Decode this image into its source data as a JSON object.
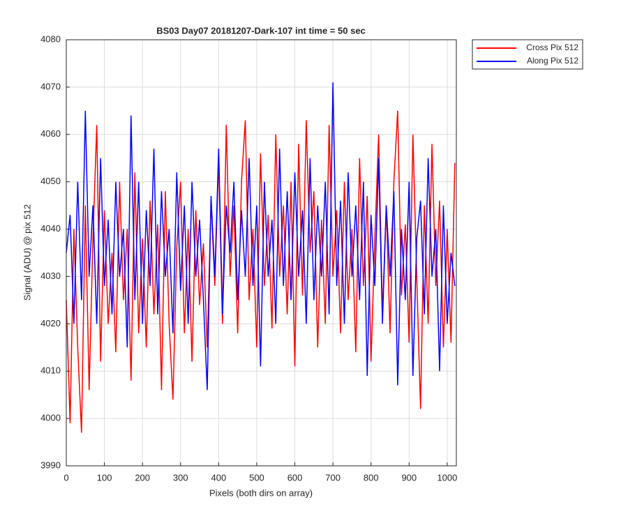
{
  "chart_data": {
    "type": "line",
    "title": "BS03 Day07 20181207-Dark-107 int time = 50 sec",
    "xlabel": "Pixels (both dirs on array)",
    "ylabel": "Signal (ADU) @ pix 512",
    "x": [
      0,
      10,
      20,
      30,
      40,
      50,
      60,
      70,
      80,
      90,
      100,
      110,
      120,
      130,
      140,
      150,
      160,
      170,
      180,
      190,
      200,
      210,
      220,
      230,
      240,
      250,
      260,
      270,
      280,
      290,
      300,
      310,
      320,
      330,
      340,
      350,
      360,
      370,
      380,
      390,
      400,
      410,
      420,
      430,
      440,
      450,
      460,
      470,
      480,
      490,
      500,
      510,
      520,
      530,
      540,
      550,
      560,
      570,
      580,
      590,
      600,
      610,
      620,
      630,
      640,
      650,
      660,
      670,
      680,
      690,
      700,
      710,
      720,
      730,
      740,
      750,
      760,
      770,
      780,
      790,
      800,
      810,
      820,
      830,
      840,
      850,
      860,
      870,
      880,
      890,
      900,
      910,
      920,
      930,
      940,
      950,
      960,
      970,
      980,
      990,
      1000,
      1010,
      1020
    ],
    "series": [
      {
        "name": "Cross Pix 512",
        "color": "#ff0000",
        "values": [
          4025,
          3999,
          4040,
          4015,
          3997,
          4045,
          4006,
          4038,
          4062,
          4012,
          4044,
          4020,
          4035,
          4014,
          4050,
          4025,
          4040,
          4008,
          4052,
          4018,
          4038,
          4015,
          4046,
          4022,
          4041,
          4006,
          4048,
          4020,
          4004,
          4036,
          4050,
          4018,
          4040,
          4012,
          4044,
          4024,
          4037,
          4015,
          4046,
          4028,
          4055,
          4020,
          4062,
          4030,
          4045,
          4018,
          4050,
          4063,
          4025,
          4040,
          4015,
          4056,
          4028,
          4043,
          4019,
          4060,
          4030,
          4045,
          4022,
          4050,
          4011,
          4058,
          4026,
          4063,
          4035,
          4048,
          4015,
          4042,
          4020,
          4062,
          4030,
          4044,
          4018,
          4050,
          4025,
          4040,
          4014,
          4055,
          4028,
          4047,
          4012,
          4038,
          4060,
          4022,
          4045,
          4018,
          4050,
          4065,
          4026,
          4041,
          4016,
          4060,
          4030,
          4002,
          4045,
          4020,
          4058,
          4028,
          4046,
          4015,
          4040,
          4016,
          4054
        ]
      },
      {
        "name": "Along Pix 512",
        "color": "#0000ff",
        "values": [
          4035,
          4043,
          4020,
          4050,
          4025,
          4065,
          4030,
          4045,
          4020,
          4055,
          4028,
          4042,
          4022,
          4050,
          4030,
          4040,
          4015,
          4064,
          4025,
          4050,
          4020,
          4044,
          4028,
          4057,
          4022,
          4048,
          4030,
          4040,
          4018,
          4052,
          4027,
          4045,
          4020,
          4050,
          4030,
          4042,
          4025,
          4006,
          4047,
          4030,
          4057,
          4022,
          4045,
          4035,
          4050,
          4025,
          4044,
          4030,
          4055,
          4028,
          4045,
          4011,
          4050,
          4030,
          4042,
          4020,
          4057,
          4028,
          4048,
          4025,
          4052,
          4030,
          4044,
          4020,
          4055,
          4025,
          4045,
          4030,
          4050,
          4022,
          4071,
          4028,
          4046,
          4020,
          4052,
          4030,
          4045,
          4025,
          4050,
          4009,
          4043,
          4028,
          4055,
          4020,
          4045,
          4030,
          4048,
          4007,
          4040,
          4025,
          4050,
          4009,
          4038,
          4046,
          4022,
          4055,
          4030,
          4040,
          4010,
          4045,
          4020,
          4035,
          4028
        ]
      }
    ],
    "xlim": [
      0,
      1024
    ],
    "xticks": [
      0,
      100,
      200,
      300,
      400,
      500,
      600,
      700,
      800,
      900,
      1000
    ],
    "ylim": [
      3990,
      4080
    ],
    "yticks": [
      3990,
      4000,
      4010,
      4020,
      4030,
      4040,
      4050,
      4060,
      4070,
      4080
    ],
    "grid": true,
    "legend": "outside-top-right"
  }
}
